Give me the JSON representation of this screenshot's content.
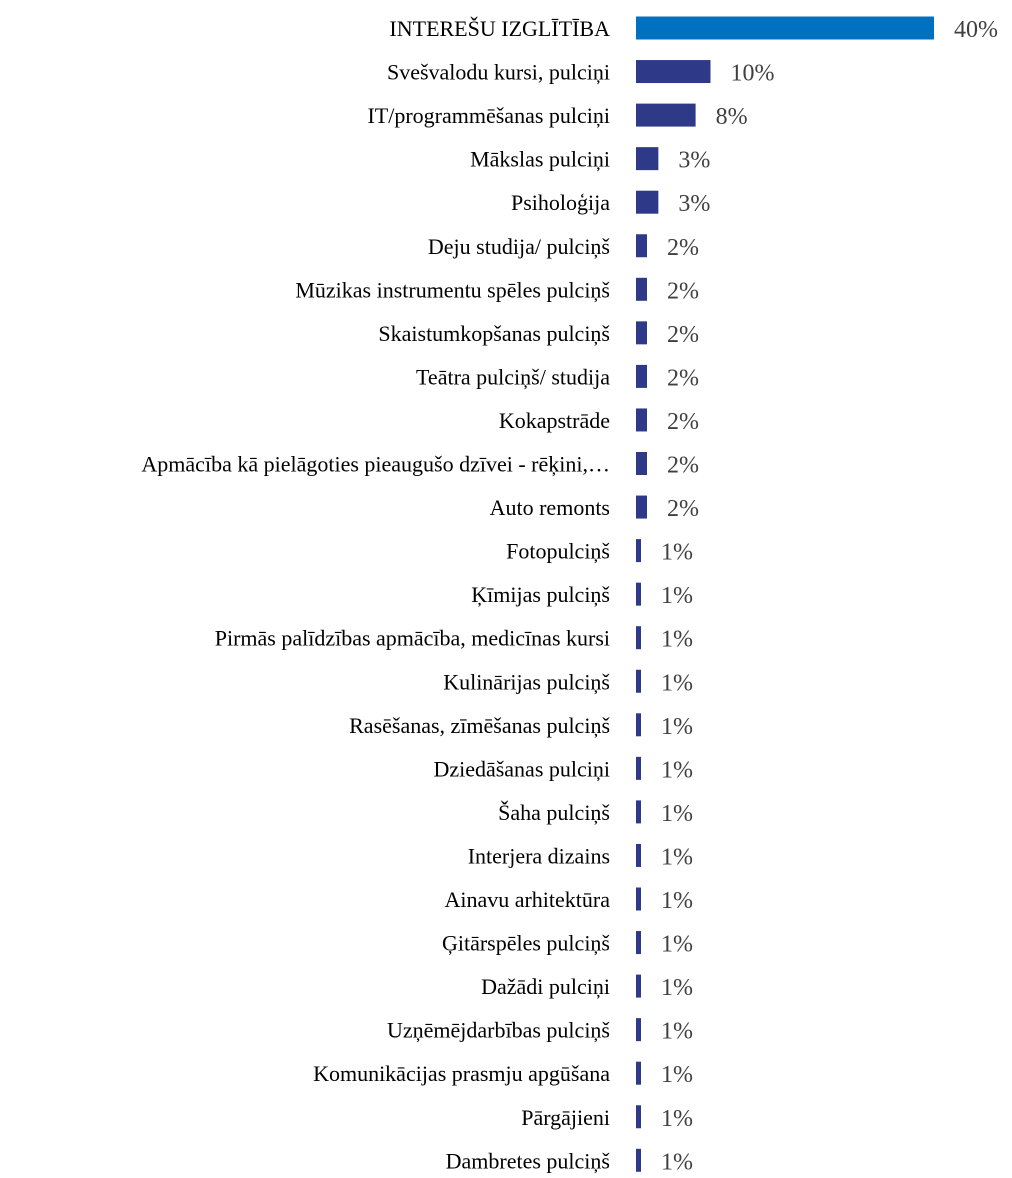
{
  "chart_data": {
    "type": "bar",
    "orientation": "horizontal",
    "title": "",
    "xlabel": "",
    "ylabel": "",
    "grid": false,
    "legend": "none",
    "value_unit": "%",
    "xlim": [
      0,
      40
    ],
    "highlight_color": "#0070C0",
    "bar_color": "#2E3A87",
    "categories": [
      "INTEREŠU IZGLĪTĪBA",
      "Svešvalodu kursi, pulciņi",
      "IT/programmēšanas pulciņi",
      "Mākslas pulciņi",
      "Psiholoģija",
      "Deju studija/ pulciņš",
      "Mūzikas instrumentu spēles pulciņš",
      "Skaistumkopšanas pulciņš",
      "Teātra pulciņš/ studija",
      "Kokapstrāde",
      "Apmācība kā pielāgoties pieaugušo dzīvei - rēķini,…",
      "Auto remonts",
      "Fotopulciņš",
      "Ķīmijas pulciņš",
      "Pirmās palīdzības apmācība, medicīnas kursi",
      "Kulinārijas pulciņš",
      "Rasēšanas, zīmēšanas pulciņš",
      "Dziedāšanas pulciņi",
      "Šaha pulciņš",
      "Interjera dizains",
      "Ainavu arhitektūra",
      "Ģitārspēles pulciņš",
      "Dažādi pulciņi",
      "Uzņēmējdarbības pulciņš",
      "Komunikācijas prasmju apgūšana",
      "Pārgājieni",
      "Dambretes pulciņš"
    ],
    "values": [
      40,
      10,
      8,
      3,
      3,
      2,
      2,
      2,
      2,
      2,
      2,
      2,
      1,
      1,
      1,
      1,
      1,
      1,
      1,
      1,
      1,
      1,
      1,
      1,
      1,
      1,
      1
    ],
    "labels": [
      "40%",
      "10%",
      "8%",
      "3%",
      "3%",
      "2%",
      "2%",
      "2%",
      "2%",
      "2%",
      "2%",
      "2%",
      "1%",
      "1%",
      "1%",
      "1%",
      "1%",
      "1%",
      "1%",
      "1%",
      "1%",
      "1%",
      "1%",
      "1%",
      "1%",
      "1%",
      "1%"
    ]
  }
}
